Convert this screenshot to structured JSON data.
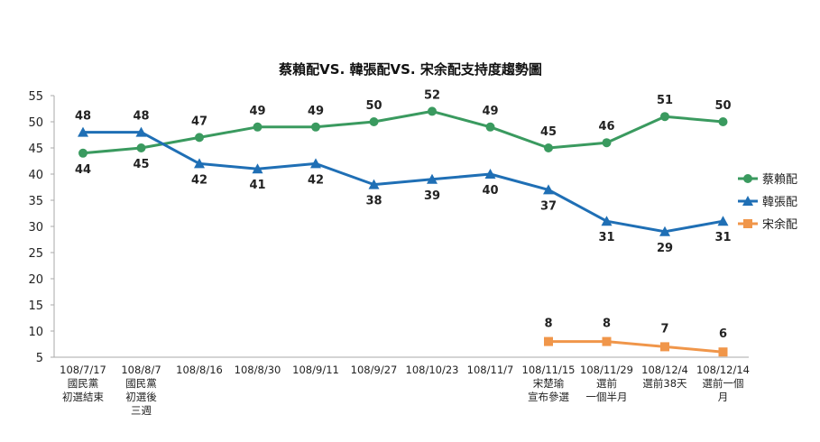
{
  "chart_data": {
    "type": "line",
    "title": "蔡賴配VS. 韓張配VS. 宋余配支持度趨勢圖",
    "xlabel": "",
    "ylabel": "",
    "ylim": [
      5,
      55
    ],
    "yticks": [
      5,
      10,
      15,
      20,
      25,
      30,
      35,
      40,
      45,
      50,
      55
    ],
    "grid": false,
    "legend_position": "right",
    "categories": [
      [
        "108/7/17",
        "國民黨",
        "初選結束"
      ],
      [
        "108/8/7",
        "國民黨",
        "初選後",
        "三週"
      ],
      [
        "108/8/16"
      ],
      [
        "108/8/30"
      ],
      [
        "108/9/11"
      ],
      [
        "108/9/27"
      ],
      [
        "108/10/23"
      ],
      [
        "108/11/7"
      ],
      [
        "108/11/15",
        "宋楚瑜",
        "宣布參選"
      ],
      [
        "108/11/29",
        "選前",
        "一個半月"
      ],
      [
        "108/12/4",
        "選前38天"
      ],
      [
        "108/12/14",
        "選前一個",
        "月"
      ]
    ],
    "series": [
      {
        "name": "蔡賴配",
        "color": "#3a9a5f",
        "marker": "circle",
        "values": [
          44,
          45,
          47,
          49,
          49,
          50,
          52,
          49,
          45,
          46,
          51,
          50
        ]
      },
      {
        "name": "韓張配",
        "color": "#1f6fb5",
        "marker": "triangle",
        "values": [
          48,
          48,
          42,
          41,
          42,
          38,
          39,
          40,
          37,
          31,
          29,
          31
        ]
      },
      {
        "name": "宋余配",
        "color": "#f0964a",
        "marker": "square",
        "values": [
          null,
          null,
          null,
          null,
          null,
          null,
          null,
          null,
          8,
          8,
          7,
          6
        ]
      }
    ]
  }
}
